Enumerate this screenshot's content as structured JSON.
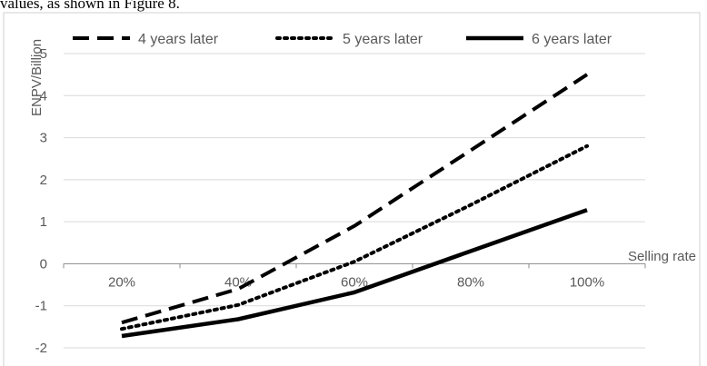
{
  "caption": "values, as shown in Figure 8.",
  "chart_data": {
    "type": "line",
    "categories": [
      "20%",
      "40%",
      "60%",
      "80%",
      "100%"
    ],
    "x": [
      0.2,
      0.4,
      0.6,
      0.8,
      1.0
    ],
    "ylabel": "ENPV/Billion",
    "xlabel": "Selling rate",
    "ylim": [
      -2,
      5
    ],
    "yticks": [
      "-2",
      "-1",
      "0",
      "1",
      "2",
      "3",
      "4",
      "5"
    ],
    "grid": true,
    "legend_position": "top",
    "series": [
      {
        "name": "4 years later",
        "style": "dashed",
        "color": "#000000",
        "values": [
          -1.4,
          -0.6,
          0.9,
          2.7,
          4.5
        ]
      },
      {
        "name": "5 years later",
        "style": "dotted",
        "color": "#000000",
        "values": [
          -1.55,
          -0.98,
          0.05,
          1.4,
          2.8
        ]
      },
      {
        "name": "6 years later",
        "style": "solid",
        "color": "#000000",
        "values": [
          -1.72,
          -1.32,
          -0.68,
          0.3,
          1.28
        ]
      }
    ]
  }
}
